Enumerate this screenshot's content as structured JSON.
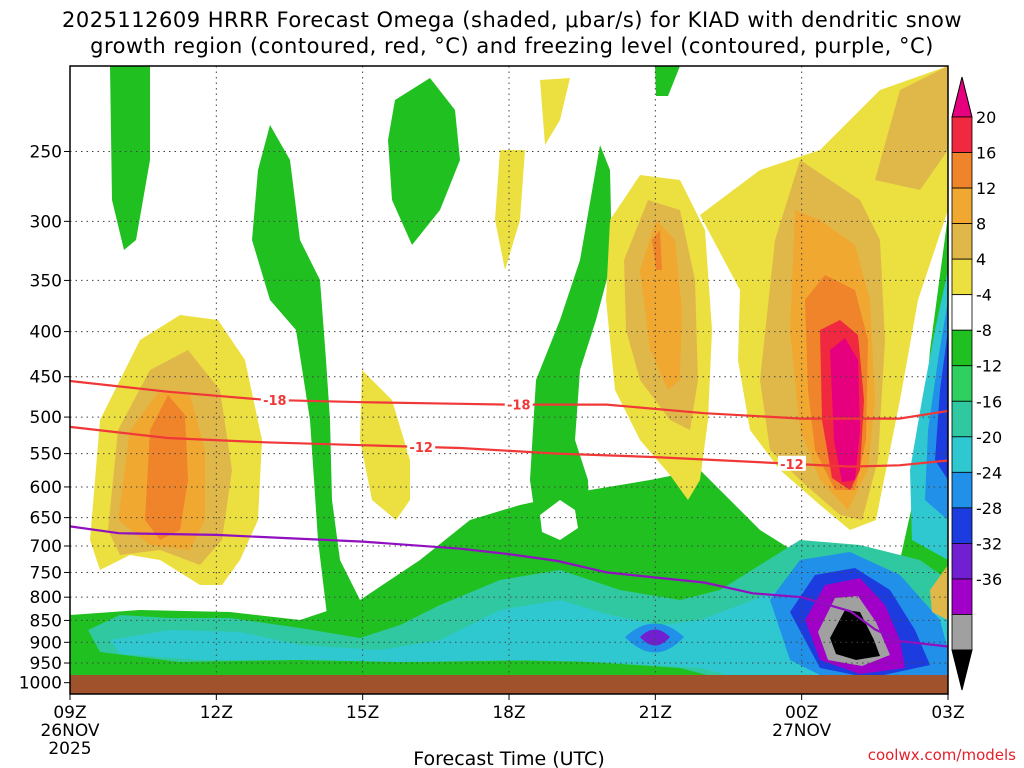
{
  "title_line1": "2025112609 HRRR Forecast Omega (shaded, μbar/s) for KIAD with dendritic snow",
  "title_line2": "growth region (contoured, red, °C) and freezing level (contoured, purple, °C)",
  "credit": "coolwx.com/models",
  "chart_data": {
    "type": "contour",
    "xlabel": "Forecast Time (UTC)",
    "x_ticks": [
      {
        "hours": 0,
        "label": "09Z",
        "sub1": "26NOV",
        "sub2": "2025"
      },
      {
        "hours": 3,
        "label": "12Z"
      },
      {
        "hours": 6,
        "label": "15Z"
      },
      {
        "hours": 9,
        "label": "18Z"
      },
      {
        "hours": 12,
        "label": "21Z"
      },
      {
        "hours": 15,
        "label": "00Z",
        "sub1": "27NOV"
      },
      {
        "hours": 18,
        "label": "03Z"
      }
    ],
    "xlim": [
      0,
      18
    ],
    "ylabel": "",
    "y_scale": "pressure (log)",
    "y_ticks": [
      250,
      300,
      350,
      400,
      450,
      500,
      550,
      600,
      650,
      700,
      750,
      800,
      850,
      900,
      950,
      1000
    ],
    "ylim": [
      200,
      1030
    ],
    "grid": true,
    "colorbar": {
      "labels": [
        20,
        16,
        12,
        8,
        4,
        -4,
        -8,
        -12,
        -16,
        -20,
        -24,
        -28,
        -32,
        -36
      ],
      "colors": [
        "#e6007e",
        "#f02840",
        "#f0842a",
        "#f0a830",
        "#e0b84a",
        "#ece040",
        "#ffffff",
        "#20c020",
        "#30d060",
        "#30c8a0",
        "#30c8d0",
        "#2090e8",
        "#1c3ce0",
        "#7020d0",
        "#a000c8",
        "#a0a0a0",
        "#000000"
      ]
    },
    "contours": [
      {
        "label": "-18",
        "color": "#f03838",
        "points": [
          [
            0,
            455
          ],
          [
            2,
            468
          ],
          [
            4,
            478
          ],
          [
            6,
            481
          ],
          [
            8,
            483
          ],
          [
            9,
            484
          ],
          [
            11,
            484
          ],
          [
            13,
            495
          ],
          [
            15,
            502
          ],
          [
            17,
            502
          ],
          [
            18,
            492
          ]
        ]
      },
      {
        "label": "-12",
        "color": "#f03838",
        "points": [
          [
            0,
            513
          ],
          [
            2,
            528
          ],
          [
            4,
            534
          ],
          [
            6,
            538
          ],
          [
            8,
            542
          ],
          [
            10,
            550
          ],
          [
            12,
            555
          ],
          [
            14,
            562
          ],
          [
            16,
            569
          ],
          [
            17,
            567
          ],
          [
            18,
            560
          ]
        ]
      },
      {
        "label": "",
        "color": "#9010c0",
        "points": [
          [
            0,
            665
          ],
          [
            1,
            677
          ],
          [
            3,
            680
          ],
          [
            5,
            688
          ],
          [
            6,
            692
          ],
          [
            8,
            705
          ],
          [
            9,
            715
          ],
          [
            10,
            728
          ],
          [
            11,
            750
          ],
          [
            12,
            760
          ],
          [
            13,
            770
          ],
          [
            14,
            792
          ],
          [
            15,
            800
          ],
          [
            16,
            830
          ],
          [
            16.5,
            870
          ],
          [
            17,
            897
          ],
          [
            18,
            910
          ]
        ]
      }
    ],
    "ground_level_hPa": 1000
  }
}
